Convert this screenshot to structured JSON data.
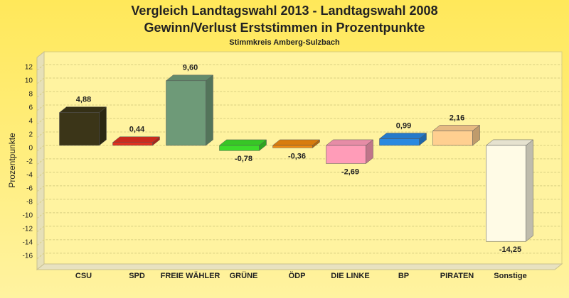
{
  "chart_data": {
    "type": "bar3d",
    "title": "Vergleich Landtagswahl 2013 - Landtagswahl 2008",
    "subtitle": "Gewinn/Verlust Erststimmen in Prozentpunkte",
    "caption": "Stimmkreis Amberg-Sulzbach",
    "y_label": "Prozentpunkte",
    "categories": [
      "CSU",
      "SPD",
      "FREIE WÄHLER",
      "GRÜNE",
      "ÖDP",
      "DIE LINKE",
      "BP",
      "PIRATEN",
      "Sonstige"
    ],
    "values": [
      4.88,
      0.44,
      9.6,
      -0.78,
      -0.36,
      -2.69,
      0.99,
      2.16,
      -14.25
    ],
    "value_labels": [
      "4,88",
      "0,44",
      "9,60",
      "-0,78",
      "-0,36",
      "-2,69",
      "0,99",
      "2,16",
      "-14,25"
    ],
    "colors": [
      "#3b3518",
      "#e03020",
      "#6e9a78",
      "#3ddc2a",
      "#f08a10",
      "#ff9cb8",
      "#2a88e0",
      "#ffcf90",
      "#fffbe6"
    ],
    "ylim": [
      -17.6,
      13.9
    ],
    "yticks": [
      12,
      10,
      8,
      6,
      4,
      2,
      0,
      -2,
      -4,
      -6,
      -8,
      -10,
      -12,
      -14,
      -16
    ],
    "grid": true
  }
}
